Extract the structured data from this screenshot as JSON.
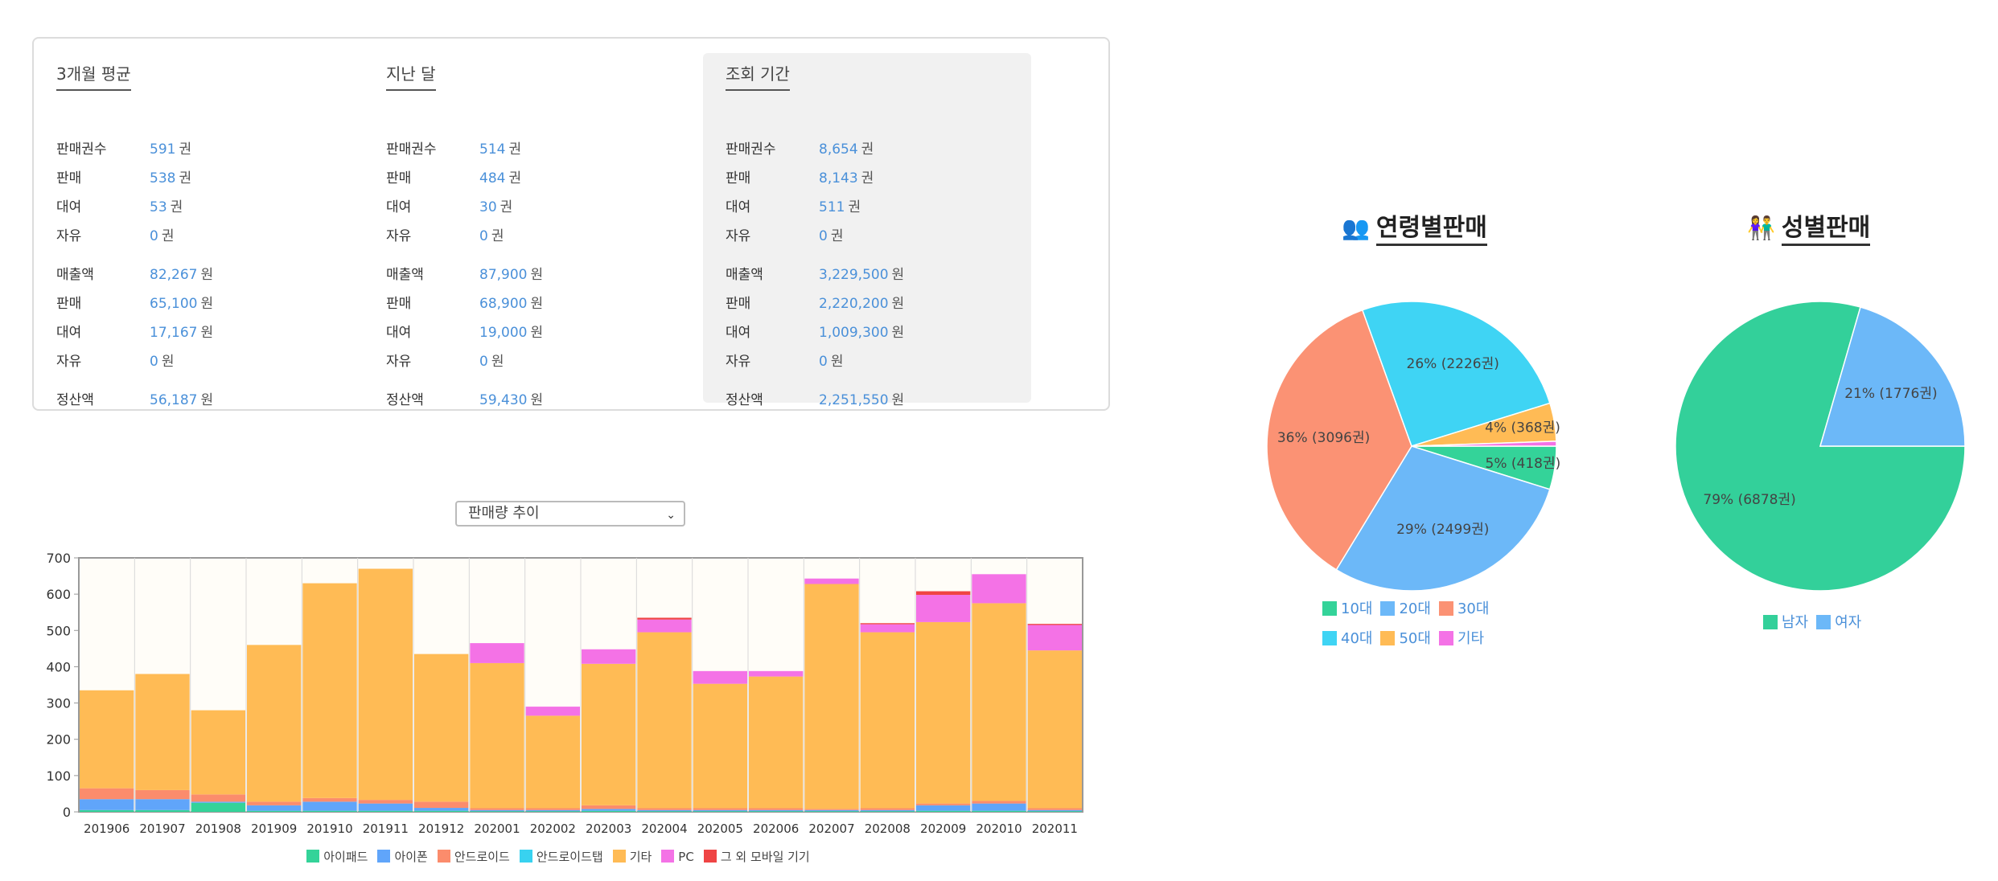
{
  "stats": {
    "periods": [
      {
        "title": "3개월 평균",
        "counts": [
          {
            "label": "판매권수",
            "value": "591",
            "unit": "권"
          },
          {
            "label": "판매",
            "value": "538",
            "unit": "권"
          },
          {
            "label": "대여",
            "value": "53",
            "unit": "권"
          },
          {
            "label": "자유",
            "value": "0",
            "unit": "권"
          }
        ],
        "amounts": [
          {
            "label": "매출액",
            "value": "82,267",
            "unit": "원"
          },
          {
            "label": "판매",
            "value": "65,100",
            "unit": "원"
          },
          {
            "label": "대여",
            "value": "17,167",
            "unit": "원"
          },
          {
            "label": "자유",
            "value": "0",
            "unit": "원"
          }
        ],
        "settlement": {
          "label": "정산액",
          "value": "56,187",
          "unit": "원"
        }
      },
      {
        "title": "지난 달",
        "counts": [
          {
            "label": "판매권수",
            "value": "514",
            "unit": "권"
          },
          {
            "label": "판매",
            "value": "484",
            "unit": "권"
          },
          {
            "label": "대여",
            "value": "30",
            "unit": "권"
          },
          {
            "label": "자유",
            "value": "0",
            "unit": "권"
          }
        ],
        "amounts": [
          {
            "label": "매출액",
            "value": "87,900",
            "unit": "원"
          },
          {
            "label": "판매",
            "value": "68,900",
            "unit": "원"
          },
          {
            "label": "대여",
            "value": "19,000",
            "unit": "원"
          },
          {
            "label": "자유",
            "value": "0",
            "unit": "원"
          }
        ],
        "settlement": {
          "label": "정산액",
          "value": "59,430",
          "unit": "원"
        }
      },
      {
        "title": "조회 기간",
        "counts": [
          {
            "label": "판매권수",
            "value": "8,654",
            "unit": "권"
          },
          {
            "label": "판매",
            "value": "8,143",
            "unit": "권"
          },
          {
            "label": "대여",
            "value": "511",
            "unit": "권"
          },
          {
            "label": "자유",
            "value": "0",
            "unit": "권"
          }
        ],
        "amounts": [
          {
            "label": "매출액",
            "value": "3,229,500",
            "unit": "원"
          },
          {
            "label": "판매",
            "value": "2,220,200",
            "unit": "원"
          },
          {
            "label": "대여",
            "value": "1,009,300",
            "unit": "원"
          },
          {
            "label": "자유",
            "value": "0",
            "unit": "원"
          }
        ],
        "settlement": {
          "label": "정산액",
          "value": "2,251,550",
          "unit": "원"
        }
      }
    ]
  },
  "select": {
    "value": "판매량 추이"
  },
  "colors": {
    "ipad": "#34d399",
    "iphone": "#60a5fa",
    "android": "#fb8c6c",
    "android_tab": "#38d2f0",
    "other": "#ffbb55",
    "pc": "#f472e6",
    "other_mobile": "#ef4444",
    "teens": "#34d399",
    "twenties": "#6cb8f8",
    "thirties": "#fb9274",
    "forties": "#3fd4f4",
    "fifties": "#ffbb55",
    "etc": "#f472e6",
    "male": "#33d09a",
    "female": "#6cb8f8"
  },
  "chart_data": [
    {
      "type": "bar",
      "stacked": true,
      "categories": [
        "201906",
        "201907",
        "201908",
        "201909",
        "201910",
        "201911",
        "201912",
        "202001",
        "202002",
        "202003",
        "202004",
        "202005",
        "202006",
        "202007",
        "202008",
        "202009",
        "202010",
        "202011"
      ],
      "ylim": [
        0,
        700
      ],
      "yticks": [
        0,
        100,
        200,
        300,
        400,
        500,
        600,
        700
      ],
      "grid": true,
      "legend_position": "bottom",
      "series": [
        {
          "name": "아이패드",
          "color_key": "ipad",
          "values": [
            5,
            5,
            25,
            3,
            3,
            3,
            3,
            2,
            2,
            3,
            2,
            2,
            2,
            2,
            2,
            3,
            3,
            2
          ]
        },
        {
          "name": "아이폰",
          "color_key": "iphone",
          "values": [
            30,
            30,
            3,
            15,
            25,
            20,
            8,
            3,
            3,
            5,
            3,
            3,
            3,
            3,
            3,
            15,
            20,
            3
          ]
        },
        {
          "name": "안드로이드",
          "color_key": "android",
          "values": [
            30,
            25,
            20,
            10,
            10,
            10,
            17,
            5,
            5,
            10,
            5,
            5,
            5,
            3,
            5,
            5,
            7,
            5
          ]
        },
        {
          "name": "안드로이드탭",
          "color_key": "android_tab",
          "values": [
            0,
            0,
            0,
            0,
            0,
            0,
            0,
            0,
            0,
            0,
            0,
            0,
            0,
            0,
            0,
            0,
            0,
            0
          ]
        },
        {
          "name": "기타",
          "color_key": "other",
          "values": [
            270,
            320,
            232,
            432,
            592,
            637,
            407,
            400,
            255,
            390,
            485,
            343,
            363,
            620,
            485,
            500,
            545,
            435
          ]
        },
        {
          "name": "PC",
          "color_key": "pc",
          "values": [
            0,
            0,
            0,
            0,
            0,
            0,
            0,
            55,
            25,
            40,
            35,
            35,
            15,
            15,
            22,
            75,
            80,
            70
          ]
        },
        {
          "name": "그 외 모바일 기기",
          "color_key": "other_mobile",
          "values": [
            0,
            0,
            0,
            0,
            0,
            0,
            0,
            0,
            0,
            0,
            5,
            0,
            0,
            0,
            3,
            10,
            0,
            3
          ]
        }
      ]
    },
    {
      "type": "pie",
      "title": "연령별판매",
      "slices": [
        {
          "name": "10대",
          "value": 418,
          "label": "5% (418권)",
          "color_key": "teens"
        },
        {
          "name": "20대",
          "value": 2499,
          "label": "29% (2499권)",
          "color_key": "twenties"
        },
        {
          "name": "30대",
          "value": 3096,
          "label": "36% (3096권)",
          "color_key": "thirties"
        },
        {
          "name": "40대",
          "value": 2226,
          "label": "26% (2226권)",
          "color_key": "forties"
        },
        {
          "name": "50대",
          "value": 368,
          "label": "4% (368권)",
          "color_key": "fifties"
        },
        {
          "name": "기타",
          "value": 47,
          "label": "",
          "color_key": "etc"
        }
      ],
      "legend_position": "bottom"
    },
    {
      "type": "pie",
      "title": "성별판매",
      "slices": [
        {
          "name": "남자",
          "value": 6878,
          "label": "79% (6878권)",
          "color_key": "male"
        },
        {
          "name": "여자",
          "value": 1776,
          "label": "21% (1776권)",
          "color_key": "female"
        }
      ],
      "legend_position": "bottom"
    }
  ]
}
